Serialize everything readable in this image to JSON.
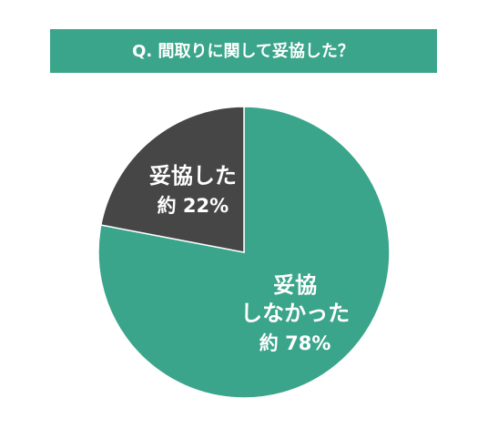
{
  "chart_data": {
    "type": "pie",
    "title": "Q. 間取りに関して妥協した？",
    "categories": [
      "妥協\nしなかった",
      "妥協した"
    ],
    "values": [
      78,
      22
    ],
    "value_labels": [
      "約 78%",
      "約 22%"
    ],
    "colors": [
      "#3aa58a",
      "#464646"
    ],
    "title_color": "#3aa58a"
  }
}
